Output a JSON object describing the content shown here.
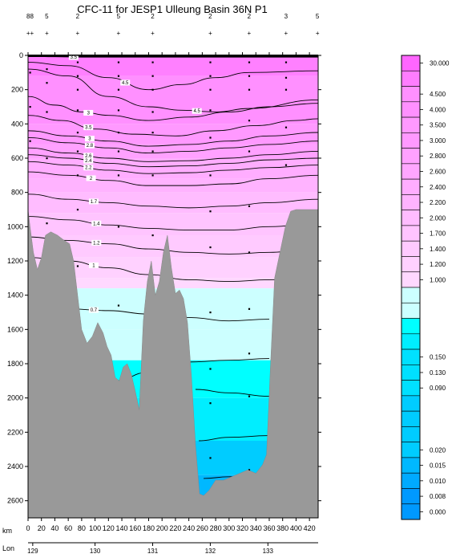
{
  "chart_data": {
    "type": "heatmap",
    "title": "CFC-11 for JESP1 Ulleung Basin 36N P1",
    "xlabel": "km",
    "x2label": "Lon",
    "x_range": [
      0,
      433
    ],
    "y_range": [
      0,
      2700
    ],
    "y_ticks": [
      0,
      200,
      400,
      600,
      800,
      1000,
      1200,
      1400,
      1600,
      1800,
      2000,
      2200,
      2400,
      2600
    ],
    "x_ticks": [
      0,
      20,
      40,
      60,
      80,
      100,
      120,
      140,
      160,
      180,
      200,
      220,
      240,
      260,
      280,
      300,
      320,
      340,
      360,
      380,
      400,
      420
    ],
    "lon_ticks": [
      {
        "label": "129",
        "km": 7
      },
      {
        "label": "130",
        "km": 100
      },
      {
        "label": "131",
        "km": 186
      },
      {
        "label": "132",
        "km": 272
      },
      {
        "label": "133",
        "km": 358
      }
    ],
    "station_marks": {
      "top_row": [
        "88",
        "5",
        "2",
        "5",
        "2",
        "2",
        "2",
        "3",
        "5"
      ],
      "top_row_km": [
        3,
        28,
        74,
        135,
        186,
        272,
        330,
        385,
        432
      ],
      "plus_row": [
        "++",
        "+",
        "+",
        "+",
        "+",
        "+",
        "+",
        "+",
        "+"
      ],
      "plus_row_km": [
        3,
        28,
        74,
        135,
        186,
        272,
        330,
        385,
        432
      ]
    },
    "colorbar_levels": [
      {
        "label": "30.000",
        "color": "#ff66ff"
      },
      {
        "label": "",
        "color": "#ff7dff"
      },
      {
        "label": "4.500",
        "color": "#ff90ff"
      },
      {
        "label": "4.000",
        "color": "#ff90ff"
      },
      {
        "label": "3.500",
        "color": "#ff99ff"
      },
      {
        "label": "3.000",
        "color": "#ff99ff"
      },
      {
        "label": "2.800",
        "color": "#ffa1ff"
      },
      {
        "label": "2.600",
        "color": "#ffa6ff"
      },
      {
        "label": "2.400",
        "color": "#ffadff"
      },
      {
        "label": "2.200",
        "color": "#ffb3ff"
      },
      {
        "label": "2.000",
        "color": "#ffbcff"
      },
      {
        "label": "1.700",
        "color": "#ffc4ff"
      },
      {
        "label": "1.400",
        "color": "#ffcaff"
      },
      {
        "label": "1.200",
        "color": "#ffd1ff"
      },
      {
        "label": "1.000",
        "color": "#ffd8ff"
      },
      {
        "label": "",
        "color": "#ccffff"
      },
      {
        "label": "",
        "color": "#ccffff"
      },
      {
        "label": "",
        "color": "#00ffff"
      },
      {
        "label": "",
        "color": "#00eeff"
      },
      {
        "label": "0.150",
        "color": "#00e0ff"
      },
      {
        "label": "0.130",
        "color": "#00e0ff"
      },
      {
        "label": "0.090",
        "color": "#00e0ff"
      },
      {
        "label": "",
        "color": "#00ccff"
      },
      {
        "label": "",
        "color": "#00ccff"
      },
      {
        "label": "",
        "color": "#00ccff"
      },
      {
        "label": "0.020",
        "color": "#00ccff"
      },
      {
        "label": "0.015",
        "color": "#00b8ff"
      },
      {
        "label": "0.010",
        "color": "#00aaff"
      },
      {
        "label": "0.008",
        "color": "#0099ff"
      },
      {
        "label": "0.000",
        "color": "#0099ff"
      }
    ],
    "bands": [
      {
        "depth": 0,
        "color": "#ff80ff"
      },
      {
        "depth": 120,
        "color": "#ff90ff"
      },
      {
        "depth": 400,
        "color": "#ff99ff"
      },
      {
        "depth": 520,
        "color": "#ffa1ff"
      },
      {
        "depth": 600,
        "color": "#ffadff"
      },
      {
        "depth": 720,
        "color": "#ffb3ff"
      },
      {
        "depth": 800,
        "color": "#ffbcff"
      },
      {
        "depth": 920,
        "color": "#ffc4ff"
      },
      {
        "depth": 1050,
        "color": "#ffcaff"
      },
      {
        "depth": 1180,
        "color": "#ffd1ff"
      },
      {
        "depth": 1300,
        "color": "#ffd8ff"
      },
      {
        "depth": 1360,
        "color": "#ccffff"
      },
      {
        "depth": 1600,
        "color": "#ccffff"
      },
      {
        "depth": 1780,
        "color": "#00ffff"
      },
      {
        "depth": 2000,
        "color": "#00eeff"
      },
      {
        "depth": 2250,
        "color": "#00ccff"
      },
      {
        "depth": 2450,
        "color": "#00b8ff"
      }
    ],
    "contours": [
      {
        "label": "3.5",
        "label_x": 68,
        "points": [
          [
            0,
            5
          ],
          [
            40,
            8
          ],
          [
            80,
            10
          ],
          [
            120,
            10
          ],
          [
            200,
            10
          ],
          [
            300,
            10
          ],
          [
            433,
            10
          ]
        ]
      },
      {
        "label": "4.5",
        "label_x": 145,
        "points": [
          [
            0,
            40
          ],
          [
            60,
            60
          ],
          [
            120,
            130
          ],
          [
            180,
            200
          ],
          [
            230,
            170
          ],
          [
            280,
            130
          ],
          [
            330,
            100
          ],
          [
            433,
            90
          ]
        ]
      },
      {
        "label": "4.5",
        "label_x": 252,
        "points": [
          [
            0,
            80
          ],
          [
            60,
            120
          ],
          [
            120,
            240
          ],
          [
            180,
            300
          ],
          [
            230,
            320
          ],
          [
            280,
            330
          ],
          [
            330,
            310
          ],
          [
            433,
            260
          ]
        ]
      },
      {
        "label": "3",
        "label_x": 90,
        "points": [
          [
            0,
            240
          ],
          [
            40,
            290
          ],
          [
            80,
            330
          ],
          [
            120,
            350
          ],
          [
            180,
            380
          ],
          [
            240,
            360
          ],
          [
            300,
            330
          ],
          [
            360,
            300
          ],
          [
            433,
            280
          ]
        ]
      },
      {
        "label": "3.5",
        "label_x": 90,
        "points": [
          [
            0,
            350
          ],
          [
            50,
            380
          ],
          [
            100,
            430
          ],
          [
            160,
            460
          ],
          [
            220,
            470
          ],
          [
            280,
            440
          ],
          [
            340,
            410
          ],
          [
            400,
            380
          ],
          [
            433,
            370
          ]
        ]
      },
      {
        "label": "3",
        "label_x": 92,
        "points": [
          [
            0,
            440
          ],
          [
            60,
            470
          ],
          [
            120,
            500
          ],
          [
            180,
            530
          ],
          [
            240,
            520
          ],
          [
            300,
            500
          ],
          [
            360,
            470
          ],
          [
            433,
            450
          ]
        ]
      },
      {
        "label": "2.8",
        "label_x": 92,
        "points": [
          [
            0,
            480
          ],
          [
            60,
            510
          ],
          [
            120,
            540
          ],
          [
            180,
            570
          ],
          [
            240,
            560
          ],
          [
            300,
            540
          ],
          [
            360,
            520
          ],
          [
            433,
            500
          ]
        ]
      },
      {
        "label": "2.6",
        "label_x": 90,
        "points": [
          [
            0,
            540
          ],
          [
            60,
            570
          ],
          [
            120,
            600
          ],
          [
            180,
            620
          ],
          [
            240,
            615
          ],
          [
            300,
            600
          ],
          [
            360,
            580
          ],
          [
            433,
            560
          ]
        ]
      },
      {
        "label": "2.4",
        "label_x": 90,
        "points": [
          [
            0,
            580
          ],
          [
            60,
            600
          ],
          [
            120,
            630
          ],
          [
            180,
            650
          ],
          [
            240,
            645
          ],
          [
            300,
            630
          ],
          [
            360,
            610
          ],
          [
            433,
            600
          ]
        ]
      },
      {
        "label": "2.2",
        "label_x": 90,
        "points": [
          [
            0,
            620
          ],
          [
            60,
            640
          ],
          [
            120,
            670
          ],
          [
            180,
            690
          ],
          [
            240,
            685
          ],
          [
            300,
            670
          ],
          [
            360,
            655
          ],
          [
            433,
            640
          ]
        ]
      },
      {
        "label": "2",
        "label_x": 94,
        "points": [
          [
            0,
            680
          ],
          [
            60,
            700
          ],
          [
            120,
            730
          ],
          [
            180,
            760
          ],
          [
            240,
            760
          ],
          [
            300,
            750
          ],
          [
            360,
            720
          ],
          [
            433,
            700
          ]
        ]
      },
      {
        "label": "1.7",
        "label_x": 98,
        "points": [
          [
            0,
            810
          ],
          [
            60,
            840
          ],
          [
            120,
            860
          ],
          [
            180,
            880
          ],
          [
            240,
            890
          ],
          [
            300,
            880
          ],
          [
            360,
            860
          ],
          [
            433,
            840
          ]
        ]
      },
      {
        "label": "1.4",
        "label_x": 102,
        "points": [
          [
            0,
            940
          ],
          [
            60,
            960
          ],
          [
            120,
            990
          ],
          [
            180,
            1010
          ],
          [
            240,
            1020
          ],
          [
            300,
            1020
          ],
          [
            360,
            1000
          ],
          [
            433,
            980
          ]
        ]
      },
      {
        "label": "1.2",
        "label_x": 102,
        "points": [
          [
            0,
            1060
          ],
          [
            60,
            1080
          ],
          [
            120,
            1100
          ],
          [
            180,
            1130
          ],
          [
            240,
            1150
          ],
          [
            300,
            1160
          ],
          [
            360,
            1150
          ],
          [
            433,
            1120
          ]
        ]
      },
      {
        "label": "1",
        "label_x": 98,
        "points": [
          [
            0,
            1180
          ],
          [
            60,
            1200
          ],
          [
            120,
            1240
          ],
          [
            180,
            1280
          ],
          [
            240,
            1310
          ],
          [
            300,
            1320
          ],
          [
            360,
            1310
          ],
          [
            433,
            1300
          ]
        ]
      },
      {
        "label": "0.7",
        "label_x": 98,
        "points": [
          [
            60,
            1480
          ],
          [
            120,
            1490
          ],
          [
            180,
            1510
          ],
          [
            240,
            1530
          ],
          [
            300,
            1550
          ],
          [
            360,
            1540
          ]
        ]
      },
      {
        "label": "",
        "label_x": 0,
        "points": [
          [
            130,
            1900
          ],
          [
            180,
            1850
          ],
          [
            240,
            1790
          ],
          [
            300,
            1780
          ],
          [
            360,
            1770
          ]
        ]
      },
      {
        "label": "",
        "label_x": 0,
        "points": [
          [
            250,
            1950
          ],
          [
            300,
            1970
          ],
          [
            360,
            1990
          ]
        ]
      },
      {
        "label": "",
        "label_x": 0,
        "points": [
          [
            255,
            2250
          ],
          [
            300,
            2230
          ],
          [
            360,
            2220
          ]
        ]
      },
      {
        "label": "",
        "label_x": 0,
        "points": [
          [
            262,
            2470
          ],
          [
            300,
            2460
          ],
          [
            360,
            2450
          ]
        ]
      }
    ],
    "bathymetry": [
      [
        0,
        900
      ],
      [
        3,
        1000
      ],
      [
        8,
        1150
      ],
      [
        14,
        1250
      ],
      [
        20,
        1180
      ],
      [
        26,
        1050
      ],
      [
        34,
        1030
      ],
      [
        44,
        1050
      ],
      [
        54,
        1080
      ],
      [
        62,
        1100
      ],
      [
        68,
        1200
      ],
      [
        74,
        1400
      ],
      [
        80,
        1600
      ],
      [
        88,
        1680
      ],
      [
        96,
        1640
      ],
      [
        104,
        1560
      ],
      [
        112,
        1620
      ],
      [
        118,
        1700
      ],
      [
        124,
        1750
      ],
      [
        130,
        1880
      ],
      [
        136,
        1900
      ],
      [
        142,
        1820
      ],
      [
        148,
        1800
      ],
      [
        154,
        1860
      ],
      [
        160,
        1960
      ],
      [
        166,
        2070
      ],
      [
        172,
        1550
      ],
      [
        178,
        1320
      ],
      [
        184,
        1200
      ],
      [
        190,
        1400
      ],
      [
        196,
        1320
      ],
      [
        202,
        1150
      ],
      [
        208,
        1050
      ],
      [
        214,
        1240
      ],
      [
        220,
        1390
      ],
      [
        226,
        1370
      ],
      [
        232,
        1420
      ],
      [
        238,
        1560
      ],
      [
        244,
        1880
      ],
      [
        250,
        2280
      ],
      [
        256,
        2560
      ],
      [
        262,
        2570
      ],
      [
        270,
        2540
      ],
      [
        280,
        2480
      ],
      [
        292,
        2480
      ],
      [
        304,
        2460
      ],
      [
        316,
        2440
      ],
      [
        328,
        2420
      ],
      [
        340,
        2440
      ],
      [
        350,
        2390
      ],
      [
        356,
        2330
      ],
      [
        362,
        1800
      ],
      [
        368,
        1300
      ],
      [
        376,
        1150
      ],
      [
        384,
        1000
      ],
      [
        392,
        910
      ],
      [
        400,
        900
      ],
      [
        433,
        900
      ]
    ],
    "stations": [
      {
        "km": 3,
        "depths": [
          100,
          300,
          500
        ]
      },
      {
        "km": 28,
        "depths": [
          80,
          160,
          330,
          600,
          980
        ]
      },
      {
        "km": 74,
        "depths": [
          40,
          120,
          200,
          320,
          450,
          560,
          700,
          900,
          1230,
          1570
        ]
      },
      {
        "km": 135,
        "depths": [
          40,
          120,
          200,
          320,
          450,
          560,
          700,
          1000,
          1460
        ]
      },
      {
        "km": 186,
        "depths": [
          40,
          120,
          200,
          330,
          450,
          560,
          700,
          1050,
          1660
        ]
      },
      {
        "km": 272,
        "depths": [
          40,
          120,
          200,
          320,
          480,
          700,
          910,
          1120,
          1500,
          1830,
          2030,
          2350,
          2550
        ]
      },
      {
        "km": 330,
        "depths": [
          40,
          120,
          200,
          380,
          560,
          880,
          1150,
          1480,
          1740,
          1990,
          2420
        ]
      },
      {
        "km": 385,
        "depths": [
          40,
          130,
          200,
          420,
          640,
          1050,
          1710
        ]
      }
    ]
  }
}
